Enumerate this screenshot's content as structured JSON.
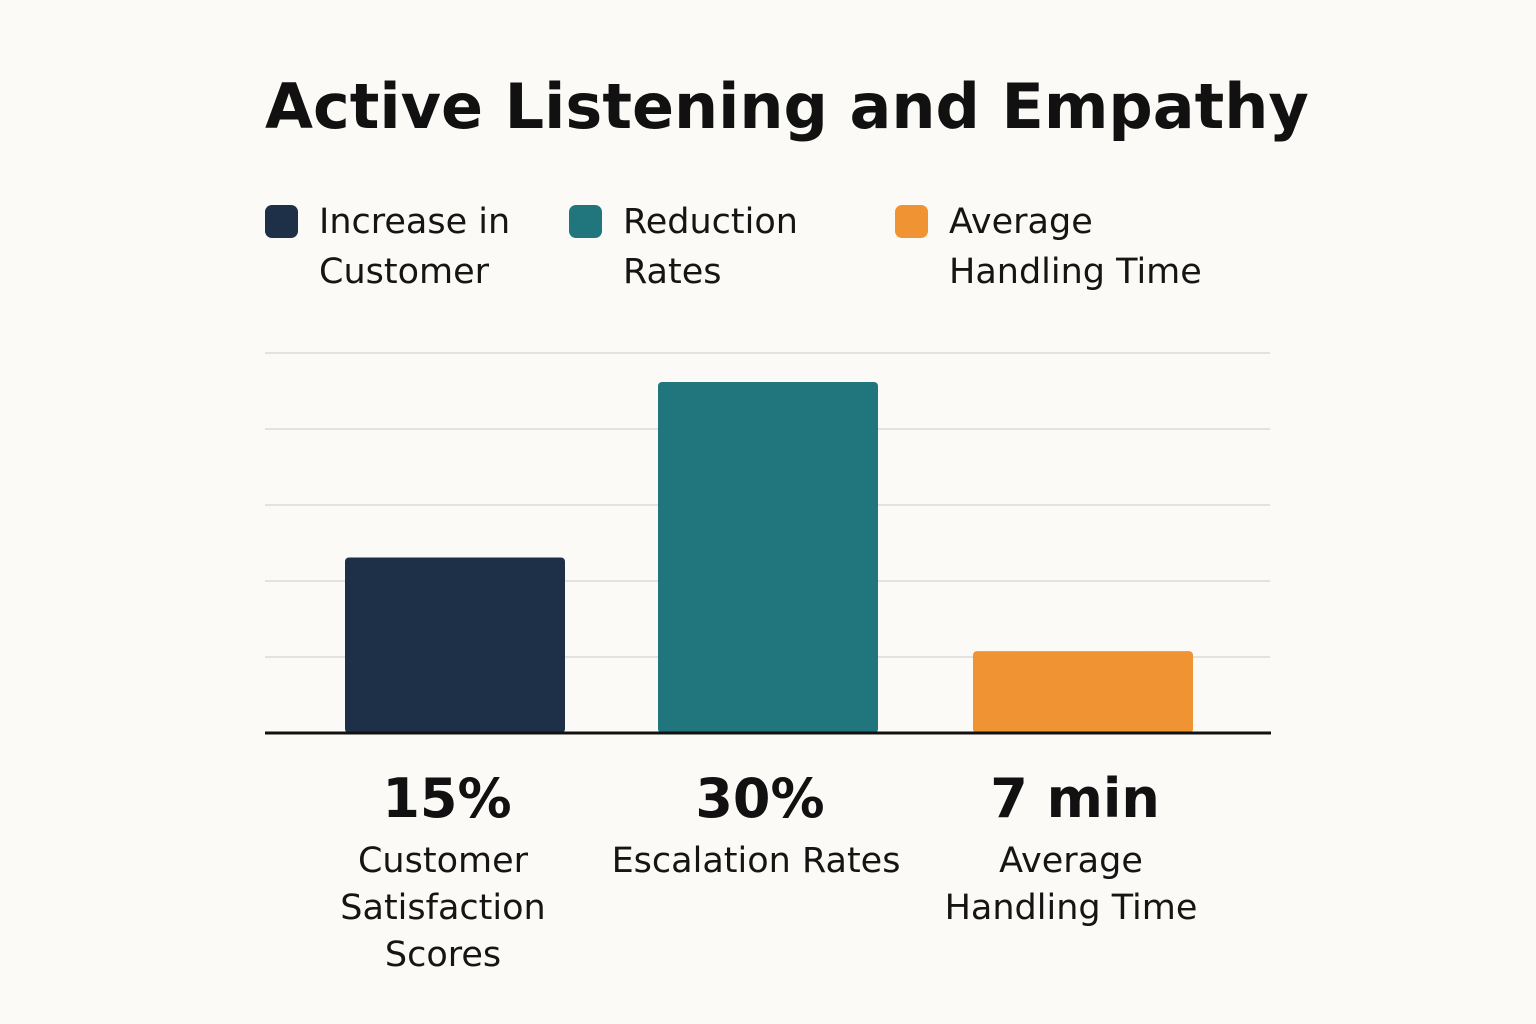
{
  "chart_data": {
    "type": "bar",
    "title": "Active Listening and Empathy",
    "legend": [
      "Increase in Customer",
      "Reduction Rates",
      "Average Handling Time"
    ],
    "categories": [
      "Customer Satisfaction Scores",
      "Escalation Rates",
      "Average Handling Time"
    ],
    "values": [
      15,
      30,
      7
    ],
    "value_labels": [
      "15%",
      "30%",
      "7 min"
    ],
    "colors": [
      "#1e3048",
      "#21767d",
      "#f09433"
    ]
  }
}
